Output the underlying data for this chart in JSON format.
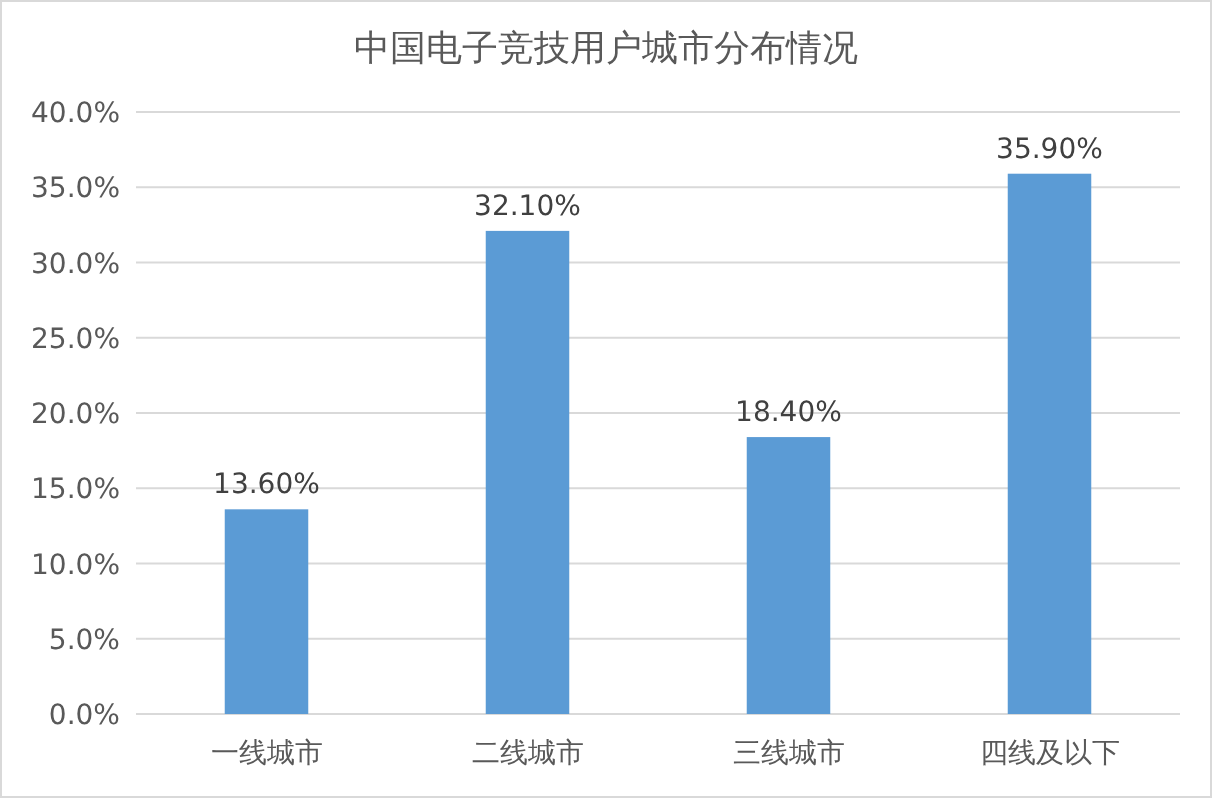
{
  "chart_data": {
    "type": "bar",
    "title": "中国电子竞技用户城市分布情况",
    "categories": [
      "一线城市",
      "二线城市",
      "三线城市",
      "四线及以下"
    ],
    "values": [
      13.6,
      32.1,
      18.4,
      35.9
    ],
    "value_labels": [
      "13.60%",
      "32.10%",
      "18.40%",
      "35.90%"
    ],
    "color": "#5b9bd5",
    "ylim": [
      0,
      40
    ],
    "yticks": [
      {
        "value": 0,
        "label": "0.0%"
      },
      {
        "value": 5,
        "label": "5.0%"
      },
      {
        "value": 10,
        "label": "10.0%"
      },
      {
        "value": 15,
        "label": "15.0%"
      },
      {
        "value": 20,
        "label": "20.0%"
      },
      {
        "value": 25,
        "label": "25.0%"
      },
      {
        "value": 30,
        "label": "30.0%"
      },
      {
        "value": 35,
        "label": "35.0%"
      },
      {
        "value": 40,
        "label": "40.0%"
      }
    ],
    "grid": "y"
  }
}
